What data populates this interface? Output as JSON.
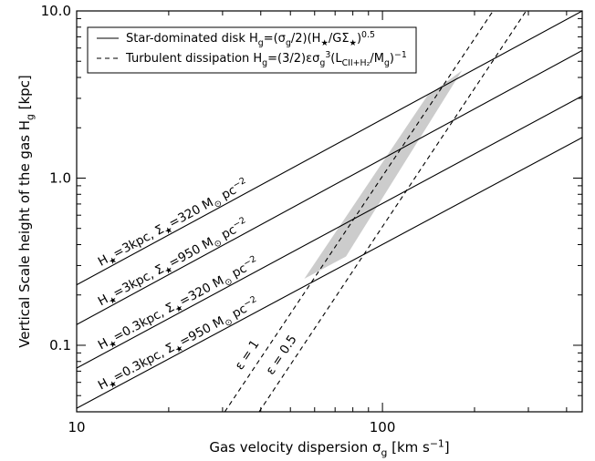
{
  "chart_data": {
    "type": "line",
    "x_scale": "log",
    "y_scale": "log",
    "xlim": [
      10,
      450
    ],
    "ylim": [
      0.04,
      10.0
    ],
    "xlabel_parts": [
      "Gas velocity dispersion ",
      "σ",
      "g",
      " [km s",
      "−1",
      "]"
    ],
    "ylabel_parts": [
      "Vertical Scale height of the gas H",
      "g",
      " [kpc]"
    ],
    "x_ticks": [
      {
        "value": 10,
        "label": "10"
      },
      {
        "value": 100,
        "label": "100"
      }
    ],
    "y_ticks": [
      {
        "value": 0.1,
        "label": "0.1"
      },
      {
        "value": 1.0,
        "label": "1.0"
      },
      {
        "value": 10.0,
        "label": "10.0"
      }
    ],
    "legend": {
      "placement": "top-left",
      "entries": [
        {
          "style": "solid",
          "text": "Star-dominated disk H",
          "sub": "g",
          "formula": "=(σ",
          "formula_sub": "g",
          "formula_2": "/2)(H",
          "formula_sub2": "★",
          "formula_3": "/GΣ",
          "formula_sub3": "★",
          "formula_4": ")",
          "formula_sup": "0.5"
        },
        {
          "style": "dashed",
          "text": "Turbulent dissipation H",
          "sub": "g",
          "formula": "=(3/2)εσ",
          "formula_sub": "g",
          "formula_sup": "3",
          "formula_2": "(L",
          "formula_sub2": "CII+H₂",
          "formula_3": "/M",
          "formula_sub3": "g",
          "formula_4": ")",
          "formula_sup2": "−1"
        }
      ]
    },
    "series": [
      {
        "style": "solid",
        "label_parts": [
          "H",
          "★",
          "=3kpc, Σ",
          "★",
          "=320 M",
          "⊙",
          " pc",
          "−2"
        ],
        "points": [
          [
            10,
            0.23
          ],
          [
            450,
            10.0
          ]
        ]
      },
      {
        "style": "solid",
        "label_parts": [
          "H",
          "★",
          "=3kpc, Σ",
          "★",
          "=950 M",
          "⊙",
          " pc",
          "−2"
        ],
        "points": [
          [
            10,
            0.133
          ],
          [
            450,
            5.8
          ]
        ]
      },
      {
        "style": "solid",
        "label_parts": [
          "H",
          "★",
          "=0.3kpc, Σ",
          "★",
          "=320 M",
          "⊙",
          " pc",
          "−2"
        ],
        "points": [
          [
            10,
            0.073
          ],
          [
            450,
            3.1
          ]
        ]
      },
      {
        "style": "solid",
        "label_parts": [
          "H",
          "★",
          "=0.3kpc, Σ",
          "★",
          "=950 M",
          "⊙",
          " pc",
          "−2"
        ],
        "points": [
          [
            10,
            0.042
          ],
          [
            450,
            1.75
          ]
        ]
      },
      {
        "style": "dashed",
        "label": "ε = 1",
        "points": [
          [
            30.5,
            0.04
          ],
          [
            230,
            10.0
          ]
        ]
      },
      {
        "style": "dashed",
        "label": "ε = 0.5",
        "points": [
          [
            39.5,
            0.04
          ],
          [
            295,
            10.0
          ]
        ]
      }
    ],
    "shaded_region": {
      "color": "#cccccc",
      "vertices": [
        [
          55.5,
          0.25
        ],
        [
          140,
          3.1
        ],
        [
          182,
          4.4
        ],
        [
          76,
          0.34
        ]
      ]
    }
  }
}
